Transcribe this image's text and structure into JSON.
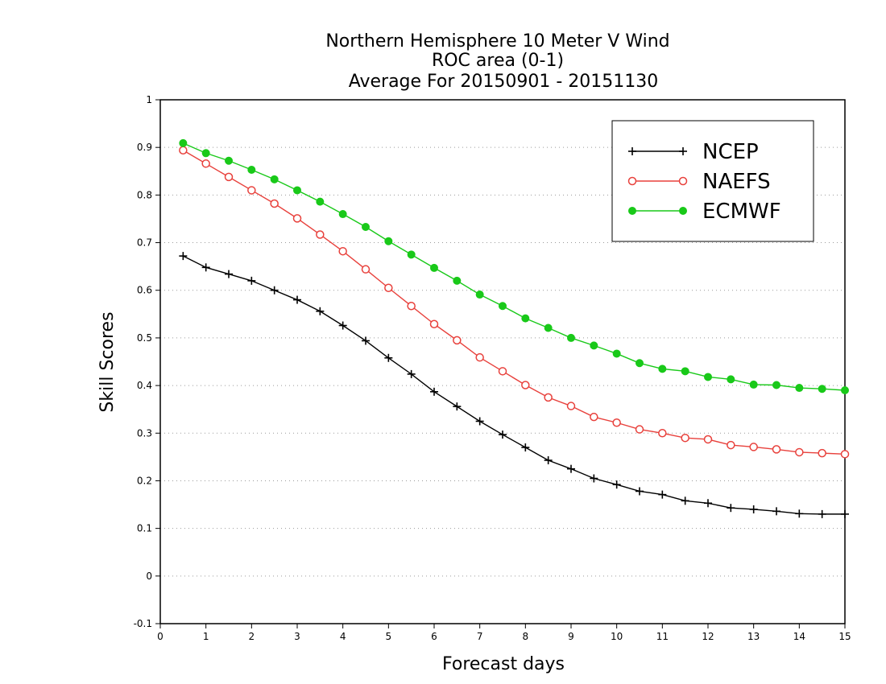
{
  "chart_data": {
    "type": "line",
    "title_lines": [
      "Northern Hemisphere 10 Meter V Wind",
      "ROC area (0-1)",
      "Average For 20150901 - 20151130"
    ],
    "xlabel": "Forecast days",
    "ylabel": "Skill Scores",
    "xlim": [
      0,
      15
    ],
    "ylim": [
      -0.1,
      1
    ],
    "xticks": [
      0,
      1,
      2,
      3,
      4,
      5,
      6,
      7,
      8,
      9,
      10,
      11,
      12,
      13,
      14,
      15
    ],
    "xtick_labels": [
      "0",
      "1",
      "2",
      "3",
      "4",
      "5",
      "6",
      "7",
      "8",
      "9",
      "10",
      "11",
      "12",
      "13",
      "14",
      "15"
    ],
    "yticks": [
      -0.1,
      0,
      0.1,
      0.2,
      0.3,
      0.4,
      0.5,
      0.6,
      0.7,
      0.8,
      0.9,
      1
    ],
    "ytick_labels": [
      "-0.1",
      "0",
      "0.1",
      "0.2",
      "0.3",
      "0.4",
      "0.5",
      "0.6",
      "0.7",
      "0.8",
      "0.9",
      "1"
    ],
    "grid": "horizontal-dotted",
    "legend_position": "top-right",
    "x": [
      0.5,
      1,
      1.5,
      2,
      2.5,
      3,
      3.5,
      4,
      4.5,
      5,
      5.5,
      6,
      6.5,
      7,
      7.5,
      8,
      8.5,
      9,
      9.5,
      10,
      10.5,
      11,
      11.5,
      12,
      12.5,
      13,
      13.5,
      14,
      14.5,
      15
    ],
    "series": [
      {
        "name": "NCEP",
        "color": "#000000",
        "marker": "plus",
        "values": [
          0.672,
          0.648,
          0.634,
          0.62,
          0.6,
          0.58,
          0.556,
          0.526,
          0.494,
          0.458,
          0.424,
          0.387,
          0.356,
          0.325,
          0.297,
          0.27,
          0.243,
          0.225,
          0.205,
          0.192,
          0.178,
          0.171,
          0.158,
          0.153,
          0.143,
          0.14,
          0.136,
          0.131,
          0.13,
          0.13
        ]
      },
      {
        "name": "NAEFS",
        "color": "#e8413c",
        "marker": "open-circle",
        "values": [
          0.894,
          0.866,
          0.838,
          0.81,
          0.782,
          0.751,
          0.717,
          0.682,
          0.644,
          0.605,
          0.567,
          0.529,
          0.495,
          0.459,
          0.43,
          0.401,
          0.375,
          0.357,
          0.334,
          0.322,
          0.308,
          0.3,
          0.29,
          0.287,
          0.275,
          0.271,
          0.266,
          0.26,
          0.258,
          0.256
        ]
      },
      {
        "name": "ECMWF",
        "color": "#19c919",
        "marker": "filled-circle",
        "values": [
          0.909,
          0.888,
          0.872,
          0.853,
          0.833,
          0.81,
          0.786,
          0.76,
          0.733,
          0.703,
          0.675,
          0.647,
          0.62,
          0.591,
          0.567,
          0.541,
          0.521,
          0.5,
          0.484,
          0.467,
          0.447,
          0.435,
          0.43,
          0.418,
          0.413,
          0.402,
          0.401,
          0.395,
          0.393,
          0.39
        ]
      }
    ]
  }
}
